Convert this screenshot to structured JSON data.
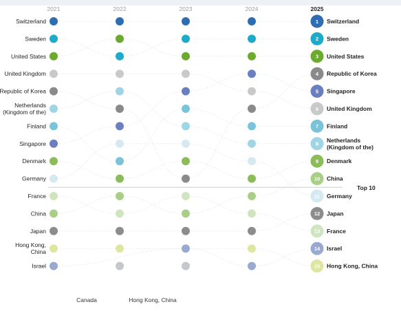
{
  "chart_data": {
    "type": "bump",
    "years": [
      "2021",
      "2022",
      "2023",
      "2024",
      "2025"
    ],
    "threshold_label": "Top 10",
    "threshold_rank": 10,
    "bottom_labels": [
      "Canada",
      "Hong Kong, China"
    ],
    "colors": {
      "Switzerland": "#2f6db3",
      "Sweden": "#1eaacb",
      "United States": "#6aaa2c",
      "United Kingdom": "#c9c9c9",
      "Republic of Korea": "#8a8a8a",
      "Netherlands (Kingdom of the)": "#9fd5e4",
      "Finland": "#7bc3d9",
      "Singapore": "#6a7fbf",
      "Denmark": "#8cbc5a",
      "Germany": "#d6e8f0",
      "France": "#cfe5c0",
      "China": "#a9cf87",
      "Japan": "#8c8c8c",
      "Hong Kong, China": "#dfe6a0",
      "Israel": "#9aa9cf"
    },
    "left_labels": [
      [
        "Switzerland"
      ],
      [
        "Sweden"
      ],
      [
        "United States"
      ],
      [
        "United Kingdom"
      ],
      [
        "Republic of Korea"
      ],
      [
        "Netherlands",
        "(Kingdom of the)"
      ],
      [
        "Finland"
      ],
      [
        "Singapore"
      ],
      [
        "Denmark"
      ],
      [
        "Germany"
      ],
      [
        "France"
      ],
      [
        "China"
      ],
      [
        "Japan"
      ],
      [
        "Hong Kong,",
        "China"
      ],
      [
        "Israel"
      ]
    ],
    "right_labels": [
      [
        "Switzerland"
      ],
      [
        "Sweden"
      ],
      [
        "United States"
      ],
      [
        "Republic of Korea"
      ],
      [
        "Singapore"
      ],
      [
        "United Kingdom"
      ],
      [
        "Finland"
      ],
      [
        "Netherlands",
        "(Kingdom of the)"
      ],
      [
        "Denmark"
      ],
      [
        "China"
      ],
      [
        "Germany"
      ],
      [
        "Japan"
      ],
      [
        "France"
      ],
      [
        "Israel"
      ],
      [
        "Hong Kong, China"
      ]
    ],
    "rankings": {
      "2021": [
        "Switzerland",
        "Sweden",
        "United States",
        "United Kingdom",
        "Republic of Korea",
        "Netherlands (Kingdom of the)",
        "Finland",
        "Singapore",
        "Denmark",
        "Germany",
        "France",
        "China",
        "Japan",
        "Hong Kong, China",
        "Israel"
      ],
      "2022": [
        "Switzerland",
        "United States",
        "Sweden",
        "United Kingdom",
        "Netherlands (Kingdom of the)",
        "Republic of Korea",
        "Singapore",
        "Germany",
        "Finland",
        "Denmark",
        "China",
        "France",
        "Japan",
        "Hong Kong, China",
        "Canada"
      ],
      "2023": [
        "Switzerland",
        "Sweden",
        "United States",
        "United Kingdom",
        "Singapore",
        "Finland",
        "Netherlands (Kingdom of the)",
        "Germany",
        "Denmark",
        "Republic of Korea",
        "France",
        "China",
        "Japan",
        "Israel",
        "Canada"
      ],
      "2024": [
        "Switzerland",
        "Sweden",
        "United States",
        "Singapore",
        "United Kingdom",
        "Republic of Korea",
        "Finland",
        "Netherlands (Kingdom of the)",
        "Germany",
        "Denmark",
        "China",
        "France",
        "Japan",
        "Hong Kong, China",
        "Israel"
      ],
      "2025": [
        "Switzerland",
        "Sweden",
        "United States",
        "Republic of Korea",
        "Singapore",
        "United Kingdom",
        "Finland",
        "Netherlands (Kingdom of the)",
        "Denmark",
        "China",
        "Germany",
        "Japan",
        "France",
        "Israel",
        "Hong Kong, China"
      ]
    }
  }
}
